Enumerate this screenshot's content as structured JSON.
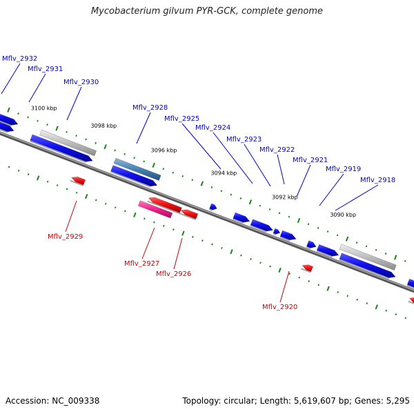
{
  "title": "Mycobacterium gilvum PYR-GCK, complete genome",
  "footer": {
    "accession_label": "Accession:",
    "accession": "NC_009338",
    "topology_label": "Topology:",
    "topology": "circular",
    "length_label": "Length:",
    "length": "5,619,607 bp",
    "genes_label": "Genes:",
    "genes": "5,295"
  },
  "colors": {
    "forward_cds": "#0000ee",
    "reverse_cds": "#ee0000",
    "other_forward_feature": "#4682b4",
    "other_reverse_feature": "#ff1493",
    "pseudo_feature": "#b4b4b4",
    "backbone": "#777777",
    "tick": "#118811",
    "forward_label": "#0000cc",
    "reverse_label": "#cc0000"
  },
  "scale_ticks": [
    "3100 kbp",
    "3098 kbp",
    "3096 kbp",
    "3094 kbp",
    "3092 kbp",
    "3090 kbp"
  ],
  "forward_genes": [
    "Mflv_2932",
    "Mflv_2931",
    "Mflv_2930",
    "Mflv_2928",
    "Mflv_2925",
    "Mflv_2924",
    "Mflv_2923",
    "Mflv_2922",
    "Mflv_2921",
    "Mflv_2919",
    "Mflv_2918"
  ],
  "reverse_genes": [
    "Mflv_2929",
    "Mflv_2927",
    "Mflv_2926",
    "Mflv_2920"
  ]
}
